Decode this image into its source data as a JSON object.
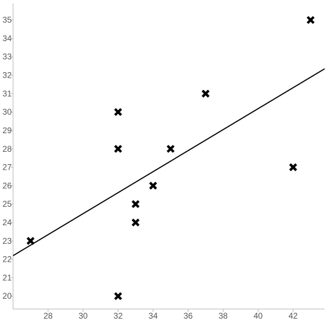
{
  "chart_data": {
    "type": "scatter",
    "title": "",
    "xlabel": "",
    "ylabel": "",
    "xlim": [
      26,
      43.8
    ],
    "ylim": [
      19.3,
      35.9
    ],
    "x_ticks": [
      28,
      30,
      32,
      34,
      36,
      38,
      40,
      42
    ],
    "y_ticks": [
      20,
      21,
      22,
      23,
      24,
      25,
      26,
      27,
      28,
      29,
      30,
      31,
      32,
      33,
      34,
      35
    ],
    "grid": false,
    "marker": "x",
    "marker_color": "#000000",
    "points": [
      {
        "x": 27,
        "y": 23
      },
      {
        "x": 32,
        "y": 30
      },
      {
        "x": 32,
        "y": 28
      },
      {
        "x": 32,
        "y": 20
      },
      {
        "x": 33,
        "y": 25
      },
      {
        "x": 33,
        "y": 24
      },
      {
        "x": 34,
        "y": 26
      },
      {
        "x": 35,
        "y": 28
      },
      {
        "x": 37,
        "y": 31
      },
      {
        "x": 42,
        "y": 27
      },
      {
        "x": 43,
        "y": 35
      }
    ],
    "trendline": {
      "x": [
        26,
        43.8
      ],
      "y": [
        22.2,
        32.35
      ]
    }
  }
}
